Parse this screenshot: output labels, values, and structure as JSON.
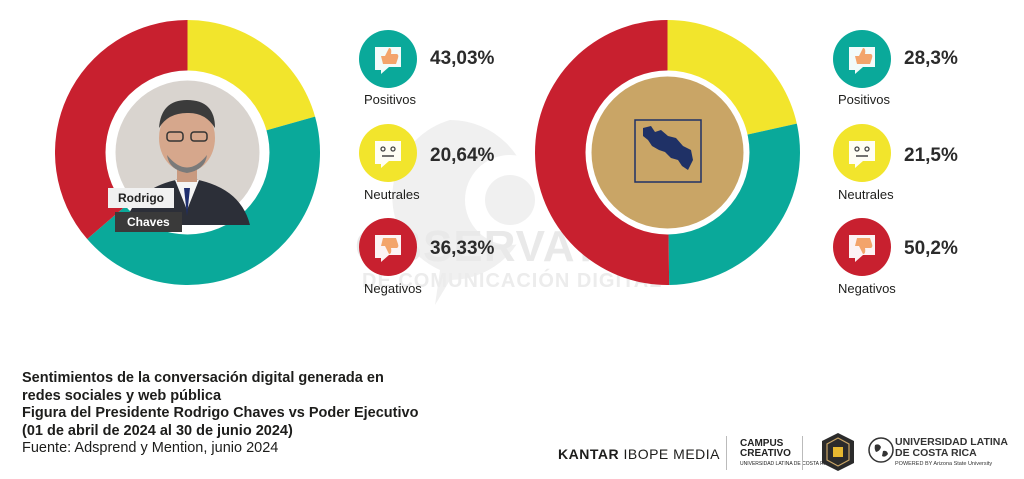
{
  "chart_data": [
    {
      "type": "pie",
      "subject": "Rodrigo Chaves",
      "categories": [
        "Positivos",
        "Neutrales",
        "Negativos"
      ],
      "values": [
        43.03,
        20.64,
        36.33
      ],
      "value_labels": [
        "43,03%",
        "20,64%",
        "36,33%"
      ]
    },
    {
      "type": "pie",
      "subject": "Poder Ejecutivo",
      "categories": [
        "Positivos",
        "Neutrales",
        "Negativos"
      ],
      "values": [
        28.3,
        21.5,
        50.2
      ],
      "value_labels": [
        "28,3%",
        "21,5%",
        "50,2%"
      ]
    }
  ],
  "colors": {
    "positivos": "#0aa99a",
    "neutrales": "#f2e52c",
    "negativos": "#c8202f",
    "ring_ejecutivo_center": "#c9a566",
    "map_blue": "#1f3166"
  },
  "icons": {
    "positivos": "thumbs-up-icon",
    "neutrales": "neutral-face-icon",
    "negativos": "thumbs-down-icon"
  },
  "photo_label": {
    "first": "Rodrigo",
    "last": "Chaves"
  },
  "watermark": {
    "line1": "OBSERVATORIO",
    "line2": "DE COMUNICACIÓN DIGITAL"
  },
  "caption": {
    "line1": "Sentimientos de la conversación digital generada en",
    "line2": "redes sociales y web pública",
    "line3": "Figura del Presidente Rodrigo Chaves vs Poder Ejecutivo",
    "line4": "(01 de abril de 2024 al 30 de junio 2024)",
    "source": "Fuente: Adsprend y Mention, junio 2024"
  },
  "logos": {
    "kantar_bold": "KANTAR",
    "kantar_rest": " IBOPE MEDIA",
    "campus_line1": "CAMPUS",
    "campus_line2": "CREATIVO",
    "campus_sub": "UNIVERSIDAD LATINA DE COSTA RICA",
    "ulat_line1": "UNIVERSIDAD LATINA",
    "ulat_line2": "DE COSTA RICA",
    "ulat_sub": "POWERED BY Arizona State University"
  }
}
